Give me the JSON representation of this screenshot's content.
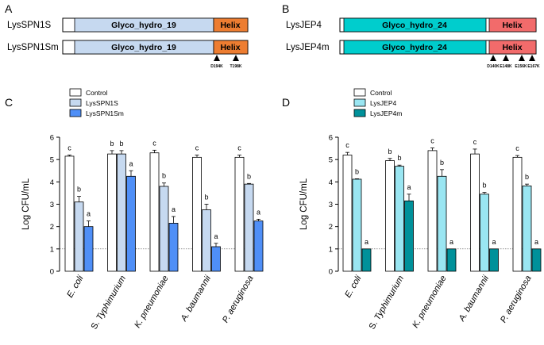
{
  "panels": {
    "A": {
      "letter": "A",
      "constructs": [
        {
          "name": "LysSPN1S",
          "domain": "Glyco_hydro_19",
          "helix": "Helix",
          "mutations": []
        },
        {
          "name": "LysSPN1Sm",
          "domain": "Glyco_hydro_19",
          "helix": "Helix",
          "mutations": [
            "D194K",
            "T198K"
          ]
        }
      ]
    },
    "B": {
      "letter": "B",
      "constructs": [
        {
          "name": "LysJEP4",
          "domain": "Glyco_hydro_24",
          "helix": "Helix",
          "mutations": []
        },
        {
          "name": "LysJEP4m",
          "domain": "Glyco_hydro_24",
          "helix": "Helix",
          "mutations": [
            "D140K",
            "E148K",
            "E156K",
            "E167K"
          ]
        }
      ]
    }
  },
  "colors": {
    "gh19": "#c6d9f0",
    "helix19": "#ed7d31",
    "gh24": "#00cdcd",
    "helix24": "#f26b6b",
    "control": "#ffffff",
    "lysspn1s": "#c6d9f0",
    "lysspn1sm": "#4f8ff7",
    "lysjep4": "#9ae6f2",
    "lysjep4m": "#00919a"
  },
  "chart_data": [
    {
      "panel": "C",
      "type": "bar",
      "title": "",
      "ylabel": "Log CFU/mL",
      "ylim": [
        0,
        6
      ],
      "yticks": [
        "0",
        "1",
        "2",
        "3",
        "4",
        "5",
        "6"
      ],
      "reference_line": 1,
      "categories": [
        "E. coli",
        "S. Typhimurium",
        "K. pneumoniae",
        "A. baumannii",
        "P. aeruginosa"
      ],
      "italic_parts": [
        "E. coli",
        "Typhimurium",
        "K. pneumoniae",
        "A. baumannii",
        "P. aeruginosa"
      ],
      "series": [
        {
          "name": "Control",
          "color": "#ffffff",
          "values": [
            5.15,
            5.25,
            5.3,
            5.1,
            5.1
          ],
          "errors": [
            0.05,
            0.15,
            0.12,
            0.1,
            0.1
          ],
          "labels": [
            "c",
            "b",
            "c",
            "c",
            "c"
          ]
        },
        {
          "name": "LysSPN1S",
          "color": "#c6d9f0",
          "values": [
            3.1,
            5.25,
            3.8,
            2.75,
            3.9
          ],
          "errors": [
            0.25,
            0.15,
            0.15,
            0.25,
            0.03
          ],
          "labels": [
            "b",
            "b",
            "b",
            "b",
            "b"
          ]
        },
        {
          "name": "LysSPN1Sm",
          "color": "#4f8ff7",
          "values": [
            2.0,
            4.25,
            2.15,
            1.1,
            2.25
          ],
          "errors": [
            0.25,
            0.25,
            0.3,
            0.15,
            0.08
          ],
          "labels": [
            "a",
            "a",
            "a",
            "a",
            "a"
          ]
        }
      ]
    },
    {
      "panel": "D",
      "type": "bar",
      "title": "",
      "ylabel": "Log CFU/mL",
      "ylim": [
        0,
        6
      ],
      "yticks": [
        "0",
        "1",
        "2",
        "3",
        "4",
        "5",
        "6"
      ],
      "reference_line": 1,
      "categories": [
        "E. coli",
        "S. Typhimurium",
        "K. pneumoniae",
        "A. baumannii",
        "P. aeruginosa"
      ],
      "italic_parts": [
        "E. coli",
        "Typhimurium",
        "K. pneumoniae",
        "A. baumannii",
        "P. aeruginosa"
      ],
      "series": [
        {
          "name": "Control",
          "color": "#ffffff",
          "values": [
            5.2,
            4.95,
            5.4,
            5.25,
            5.1
          ],
          "errors": [
            0.12,
            0.1,
            0.12,
            0.22,
            0.08
          ],
          "labels": [
            "c",
            "b",
            "c",
            "c",
            "c"
          ]
        },
        {
          "name": "LysJEP4",
          "color": "#9ae6f2",
          "values": [
            4.12,
            4.7,
            4.25,
            3.45,
            3.82
          ],
          "errors": [
            0.02,
            0.05,
            0.3,
            0.08,
            0.08
          ],
          "labels": [
            "b",
            "b",
            "b",
            "b",
            "b"
          ]
        },
        {
          "name": "LysJEP4m",
          "color": "#00919a",
          "values": [
            1.0,
            3.15,
            1.0,
            1.0,
            1.0
          ],
          "errors": [
            0,
            0.3,
            0,
            0,
            0
          ],
          "labels": [
            "a",
            "a",
            "a",
            "a",
            "a"
          ]
        }
      ]
    }
  ]
}
